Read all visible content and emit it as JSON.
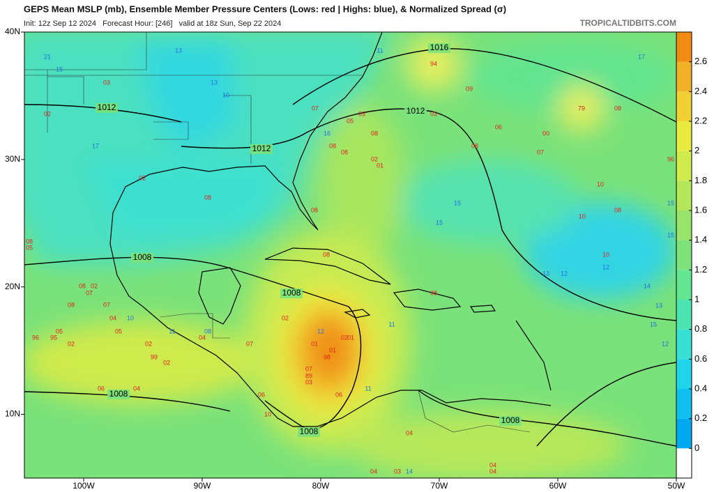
{
  "map": {
    "title": "GEPS Mean MSLP (mb), Ensemble Member Pressure Centers (Lows: red | Highs: blue), & Normalized Spread (σ)",
    "subtitle": "Init: 12z Sep 12 2024   Forecast Hour: [246]   valid at 18z Sun, Sep 22 2024",
    "source": "TROPICALTIDBITS.COM",
    "xlim": [
      -105,
      -50
    ],
    "ylim": [
      5,
      40
    ],
    "xticks": [
      {
        "value": -100,
        "label": "100W"
      },
      {
        "value": -90,
        "label": "90W"
      },
      {
        "value": -80,
        "label": "80W"
      },
      {
        "value": -70,
        "label": "70W"
      },
      {
        "value": -60,
        "label": "60W"
      },
      {
        "value": -50,
        "label": "50W"
      }
    ],
    "yticks": [
      {
        "value": 40,
        "label": "40N"
      },
      {
        "value": 30,
        "label": "30N"
      },
      {
        "value": 20,
        "label": "20N"
      },
      {
        "value": 10,
        "label": "10N"
      }
    ],
    "isobar_labels": [
      "1016",
      "1012",
      "1012",
      "1012",
      "1008",
      "1008",
      "1008",
      "1008",
      "1008"
    ],
    "lows": [
      "03",
      "02",
      "07",
      "05",
      "03",
      "08",
      "08",
      "08",
      "02",
      "01",
      "02",
      "08",
      "08",
      "94",
      "09",
      "79",
      "08",
      "03",
      "06",
      "00",
      "07",
      "08",
      "96",
      "10",
      "08",
      "10",
      "10",
      "05",
      "08",
      "08",
      "07",
      "02",
      "08",
      "07",
      "04",
      "05",
      "96",
      "95",
      "05",
      "02",
      "02",
      "99",
      "02",
      "04",
      "06",
      "02",
      "01",
      "01",
      "98",
      "02",
      "01",
      "07",
      "89",
      "03",
      "06",
      "07",
      "04",
      "06",
      "10",
      "04",
      "04",
      "03",
      "04",
      "04",
      "08",
      "08"
    ],
    "highs": [
      "21",
      "15",
      "13",
      "13",
      "10",
      "17",
      "16",
      "11",
      "17",
      "15",
      "15",
      "15",
      "15",
      "13",
      "12",
      "12",
      "14",
      "13",
      "15",
      "12",
      "12",
      "11",
      "11",
      "10",
      "11",
      "08",
      "14"
    ],
    "low_color": "#e02020",
    "high_color": "#1f6fe0",
    "colorbar": {
      "ticks": [
        0,
        0.2,
        0.4,
        0.6,
        0.8,
        1,
        1.2,
        1.4,
        1.6,
        1.8,
        2,
        2.2,
        2.4,
        2.6
      ],
      "range": [
        -0.2,
        2.8
      ],
      "under_color": "#ffffff",
      "colors": [
        "#00a8f0",
        "#10c0f0",
        "#20d4ec",
        "#38e0d4",
        "#4ce4b0",
        "#62e690",
        "#7ee27a",
        "#98e46a",
        "#b4e85a",
        "#d0ec4c",
        "#e8ec40",
        "#f0d034",
        "#f0b028",
        "#f08c14"
      ]
    }
  }
}
